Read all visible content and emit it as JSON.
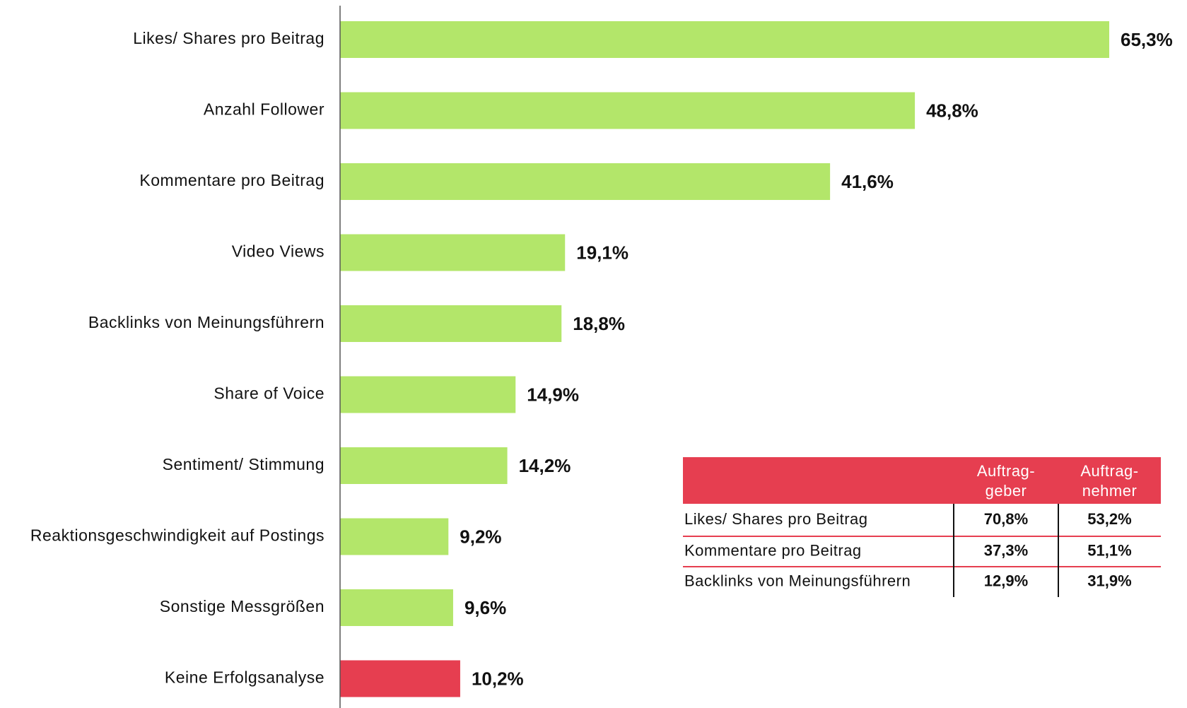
{
  "chart_data": {
    "type": "bar",
    "orientation": "horizontal",
    "categories": [
      "Likes/ Shares pro Beitrag",
      "Anzahl Follower",
      "Kommentare pro Beitrag",
      "Video Views",
      "Backlinks von Meinungsführern",
      "Share of Voice",
      "Sentiment/ Stimmung",
      "Reaktionsgeschwindigkeit auf Postings",
      "Sonstige Messgrößen",
      "Keine Erfolgsanalyse"
    ],
    "values": [
      65.3,
      48.8,
      41.6,
      19.1,
      18.8,
      14.9,
      14.2,
      9.2,
      9.6,
      10.2
    ],
    "value_labels": [
      "65,3%",
      "48,8%",
      "41,6%",
      "19,1%",
      "18,8%",
      "14,9%",
      "14,2%",
      "9,2%",
      "9,6%",
      "10,2%"
    ],
    "colors": [
      "#b3e66a",
      "#b3e66a",
      "#b3e66a",
      "#b3e66a",
      "#b3e66a",
      "#b3e66a",
      "#b3e66a",
      "#b3e66a",
      "#b3e66a",
      "#e63e50"
    ]
  },
  "table": {
    "header_color": "#e63e50",
    "columns": [
      "",
      "Auftrag-\ngeber",
      "Auftrag-\nnehmer"
    ],
    "rows": [
      [
        "Likes/ Shares pro Beitrag",
        "70,8%",
        "53,2%"
      ],
      [
        "Kommentare pro Beitrag",
        "37,3%",
        "51,1%"
      ],
      [
        "Backlinks von Meinungsführern",
        "12,9%",
        "31,9%"
      ]
    ]
  }
}
